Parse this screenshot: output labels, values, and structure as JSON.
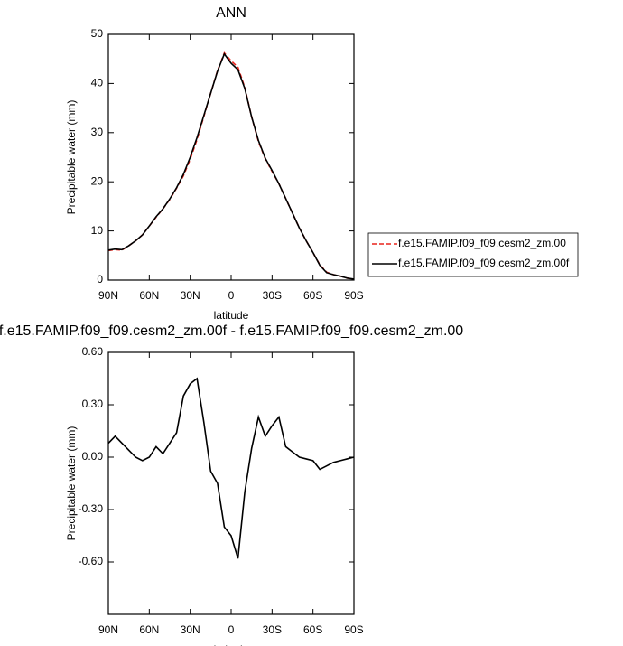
{
  "chart_data": [
    {
      "type": "line",
      "title": "ANN",
      "xlabel": "latitude",
      "ylabel": "Precipitable water (mm)",
      "x": [
        90,
        85,
        80,
        75,
        70,
        65,
        60,
        55,
        50,
        45,
        40,
        35,
        30,
        25,
        20,
        15,
        10,
        5,
        0,
        -5,
        -10,
        -15,
        -20,
        -25,
        -30,
        -35,
        -40,
        -45,
        -50,
        -55,
        -60,
        -65,
        -70,
        -75,
        -80,
        -85,
        -90
      ],
      "series": [
        {
          "name": "f.e15.FAMIP.f09_f09.cesm2_zm.00",
          "color": "#e8241c",
          "dash": true,
          "values": [
            6.0,
            6.2,
            6.1,
            7.0,
            8.0,
            9.2,
            11.0,
            12.8,
            14.5,
            16.4,
            18.7,
            21.2,
            24.6,
            28.6,
            33.3,
            38.0,
            42.6,
            46.2,
            44.6,
            43.3,
            39.2,
            33.2,
            28.2,
            24.7,
            22.1,
            19.6,
            16.6,
            13.6,
            10.6,
            8.0,
            5.6,
            3.1,
            1.6,
            1.1,
            0.8,
            0.4,
            0.2
          ]
        },
        {
          "name": "f.e15.FAMIP.f09_f09.cesm2_zm.00f",
          "color": "#000000",
          "dash": false,
          "values": [
            6.1,
            6.3,
            6.2,
            7.0,
            8.0,
            9.2,
            11.0,
            12.9,
            14.5,
            16.5,
            18.8,
            21.5,
            25.0,
            29.0,
            33.5,
            38.0,
            42.5,
            46.0,
            44.1,
            42.8,
            39.0,
            33.2,
            28.4,
            24.8,
            22.3,
            19.6,
            16.6,
            13.6,
            10.6,
            8.0,
            5.6,
            3.0,
            1.5,
            1.1,
            0.8,
            0.4,
            0.2
          ]
        }
      ],
      "xlim": [
        90,
        -90
      ],
      "xticks": [
        {
          "value": 90,
          "label": "90N"
        },
        {
          "value": 60,
          "label": "60N"
        },
        {
          "value": 30,
          "label": "30N"
        },
        0,
        {
          "value": -30,
          "label": "30S"
        },
        {
          "value": -60,
          "label": "60S"
        },
        {
          "value": -90,
          "label": "90S"
        }
      ],
      "ylim": [
        0,
        50
      ],
      "yticks": [
        0,
        10,
        20,
        30,
        40,
        50
      ],
      "grid": false,
      "legend": "right"
    },
    {
      "type": "line",
      "title": "f.e15.FAMIP.f09_f09.cesm2_zm.00f - f.e15.FAMIP.f09_f09.cesm2_zm.00",
      "xlabel": "latitude",
      "ylabel": "Precipitable water (mm)",
      "x": [
        90,
        85,
        80,
        75,
        70,
        65,
        60,
        55,
        50,
        45,
        40,
        35,
        30,
        25,
        20,
        15,
        10,
        5,
        0,
        -5,
        -10,
        -15,
        -20,
        -25,
        -30,
        -35,
        -40,
        -45,
        -50,
        -55,
        -60,
        -65,
        -70,
        -75,
        -80,
        -85,
        -90
      ],
      "series": [
        {
          "color": "#000000",
          "dash": false,
          "values": [
            0.08,
            0.12,
            0.08,
            0.04,
            0.0,
            -0.02,
            0.0,
            0.06,
            0.02,
            0.08,
            0.14,
            0.35,
            0.42,
            0.45,
            0.2,
            -0.08,
            -0.15,
            -0.4,
            -0.45,
            -0.58,
            -0.2,
            0.05,
            0.23,
            0.12,
            0.18,
            0.23,
            0.06,
            0.03,
            0.0,
            -0.01,
            -0.02,
            -0.07,
            -0.05,
            -0.03,
            -0.02,
            -0.01,
            0.0
          ]
        }
      ],
      "xlim": [
        90,
        -90
      ],
      "xticks": [
        {
          "value": 90,
          "label": "90N"
        },
        {
          "value": 60,
          "label": "60N"
        },
        {
          "value": 30,
          "label": "30N"
        },
        0,
        {
          "value": -30,
          "label": "30S"
        },
        {
          "value": -60,
          "label": "60S"
        },
        {
          "value": -90,
          "label": "90S"
        }
      ],
      "ylim": [
        -0.9,
        0.6
      ],
      "yticks": [
        {
          "value": -0.6,
          "label": "-0.60"
        },
        {
          "value": -0.3,
          "label": "-0.30"
        },
        {
          "value": 0,
          "label": "0.00"
        },
        {
          "value": 0.3,
          "label": "0.30"
        },
        {
          "value": 0.6,
          "label": "0.60"
        }
      ],
      "grid": false
    }
  ]
}
